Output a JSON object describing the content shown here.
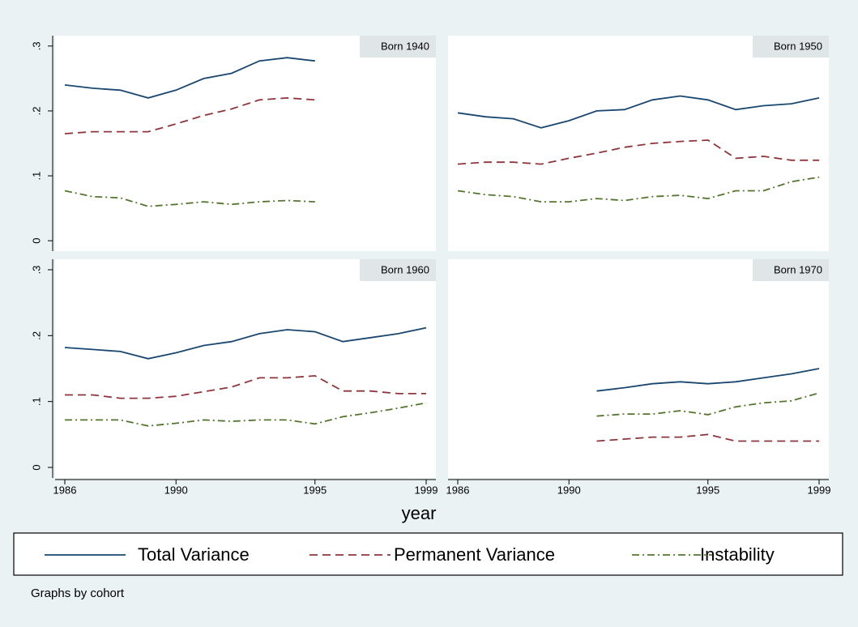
{
  "chart_data": [
    {
      "type": "line",
      "title": "Born 1940",
      "x": [
        1986,
        1987,
        1988,
        1989,
        1990,
        1991,
        1992,
        1993,
        1994,
        1995,
        1996,
        1997,
        1998,
        1999
      ],
      "xlim": [
        1985.65,
        1999.35
      ],
      "ylim": [
        -0.016,
        0.316
      ],
      "yticks": [
        0,
        {
          "value": 0.1,
          "label": ".1"
        },
        {
          "value": 0.2,
          "label": ".2"
        },
        {
          "value": 0.3,
          "label": ".3"
        }
      ],
      "series": [
        {
          "name": "Total Variance",
          "color": "#1a476f",
          "dash": "solid",
          "values": [
            0.24,
            0.235,
            0.232,
            0.22,
            0.232,
            0.25,
            0.258,
            0.277,
            0.282,
            0.277,
            null,
            null,
            null,
            null
          ]
        },
        {
          "name": "Permanent Variance",
          "color": "#90353b",
          "dash": "dash",
          "values": [
            0.165,
            0.168,
            0.168,
            0.168,
            0.18,
            0.193,
            0.203,
            0.217,
            0.22,
            0.217,
            null,
            null,
            null,
            null
          ]
        },
        {
          "name": "Instability",
          "color": "#55752f",
          "dash": "dashdot",
          "values": [
            0.077,
            0.068,
            0.066,
            0.053,
            0.056,
            0.06,
            0.056,
            0.06,
            0.062,
            0.06,
            null,
            null,
            null,
            null
          ]
        }
      ]
    },
    {
      "type": "line",
      "title": "Born 1950",
      "x": [
        1986,
        1987,
        1988,
        1989,
        1990,
        1991,
        1992,
        1993,
        1994,
        1995,
        1996,
        1997,
        1998,
        1999
      ],
      "xlim": [
        1985.65,
        1999.35
      ],
      "ylim": [
        -0.016,
        0.316
      ],
      "series": [
        {
          "name": "Total Variance",
          "color": "#1a476f",
          "dash": "solid",
          "values": [
            0.197,
            0.191,
            0.188,
            0.174,
            0.185,
            0.2,
            0.202,
            0.217,
            0.223,
            0.217,
            0.202,
            0.208,
            0.211,
            0.22
          ]
        },
        {
          "name": "Permanent Variance",
          "color": "#90353b",
          "dash": "dash",
          "values": [
            0.118,
            0.121,
            0.121,
            0.118,
            0.127,
            0.135,
            0.144,
            0.15,
            0.153,
            0.155,
            0.127,
            0.13,
            0.124,
            0.124
          ]
        },
        {
          "name": "Instability",
          "color": "#55752f",
          "dash": "dashdot",
          "values": [
            0.077,
            0.071,
            0.068,
            0.06,
            0.06,
            0.065,
            0.062,
            0.068,
            0.07,
            0.065,
            0.077,
            0.077,
            0.091,
            0.098
          ]
        }
      ]
    },
    {
      "type": "line",
      "title": "Born 1960",
      "x": [
        1986,
        1987,
        1988,
        1989,
        1990,
        1991,
        1992,
        1993,
        1994,
        1995,
        1996,
        1997,
        1998,
        1999
      ],
      "xlim": [
        1985.65,
        1999.35
      ],
      "ylim": [
        -0.016,
        0.316
      ],
      "xticks": [
        1986,
        1990,
        1995,
        1999
      ],
      "yticks": [
        0,
        {
          "value": 0.1,
          "label": ".1"
        },
        {
          "value": 0.2,
          "label": ".2"
        },
        {
          "value": 0.3,
          "label": ".3"
        }
      ],
      "series": [
        {
          "name": "Total Variance",
          "color": "#1a476f",
          "dash": "solid",
          "values": [
            0.182,
            0.179,
            0.176,
            0.165,
            0.174,
            0.185,
            0.191,
            0.203,
            0.209,
            0.206,
            0.191,
            0.197,
            0.203,
            0.212
          ]
        },
        {
          "name": "Permanent Variance",
          "color": "#90353b",
          "dash": "dash",
          "values": [
            0.11,
            0.11,
            0.105,
            0.105,
            0.108,
            0.115,
            0.122,
            0.136,
            0.136,
            0.139,
            0.116,
            0.116,
            0.112,
            0.112
          ]
        },
        {
          "name": "Instability",
          "color": "#55752f",
          "dash": "dashdot",
          "values": [
            0.072,
            0.072,
            0.072,
            0.063,
            0.067,
            0.072,
            0.07,
            0.072,
            0.072,
            0.066,
            0.077,
            0.083,
            0.09,
            0.098
          ]
        }
      ]
    },
    {
      "type": "line",
      "title": "Born 1970",
      "x": [
        1986,
        1987,
        1988,
        1989,
        1990,
        1991,
        1992,
        1993,
        1994,
        1995,
        1996,
        1997,
        1998,
        1999
      ],
      "xlim": [
        1985.65,
        1999.35
      ],
      "ylim": [
        -0.016,
        0.316
      ],
      "xticks": [
        1986,
        1990,
        1995,
        1999
      ],
      "series": [
        {
          "name": "Total Variance",
          "color": "#1a476f",
          "dash": "solid",
          "values": [
            null,
            null,
            null,
            null,
            null,
            0.116,
            0.121,
            0.127,
            0.13,
            0.127,
            0.13,
            0.136,
            0.142,
            0.15
          ]
        },
        {
          "name": "Permanent Variance",
          "color": "#90353b",
          "dash": "dash",
          "values": [
            null,
            null,
            null,
            null,
            null,
            0.04,
            0.043,
            0.046,
            0.046,
            0.05,
            0.04,
            0.04,
            0.04,
            0.04
          ]
        },
        {
          "name": "Instability",
          "color": "#55752f",
          "dash": "dashdot",
          "values": [
            null,
            null,
            null,
            null,
            null,
            0.078,
            0.081,
            0.081,
            0.086,
            0.08,
            0.092,
            0.098,
            0.101,
            0.113
          ]
        }
      ]
    }
  ],
  "xlabel": "year",
  "note": "Graphs by cohort"
}
